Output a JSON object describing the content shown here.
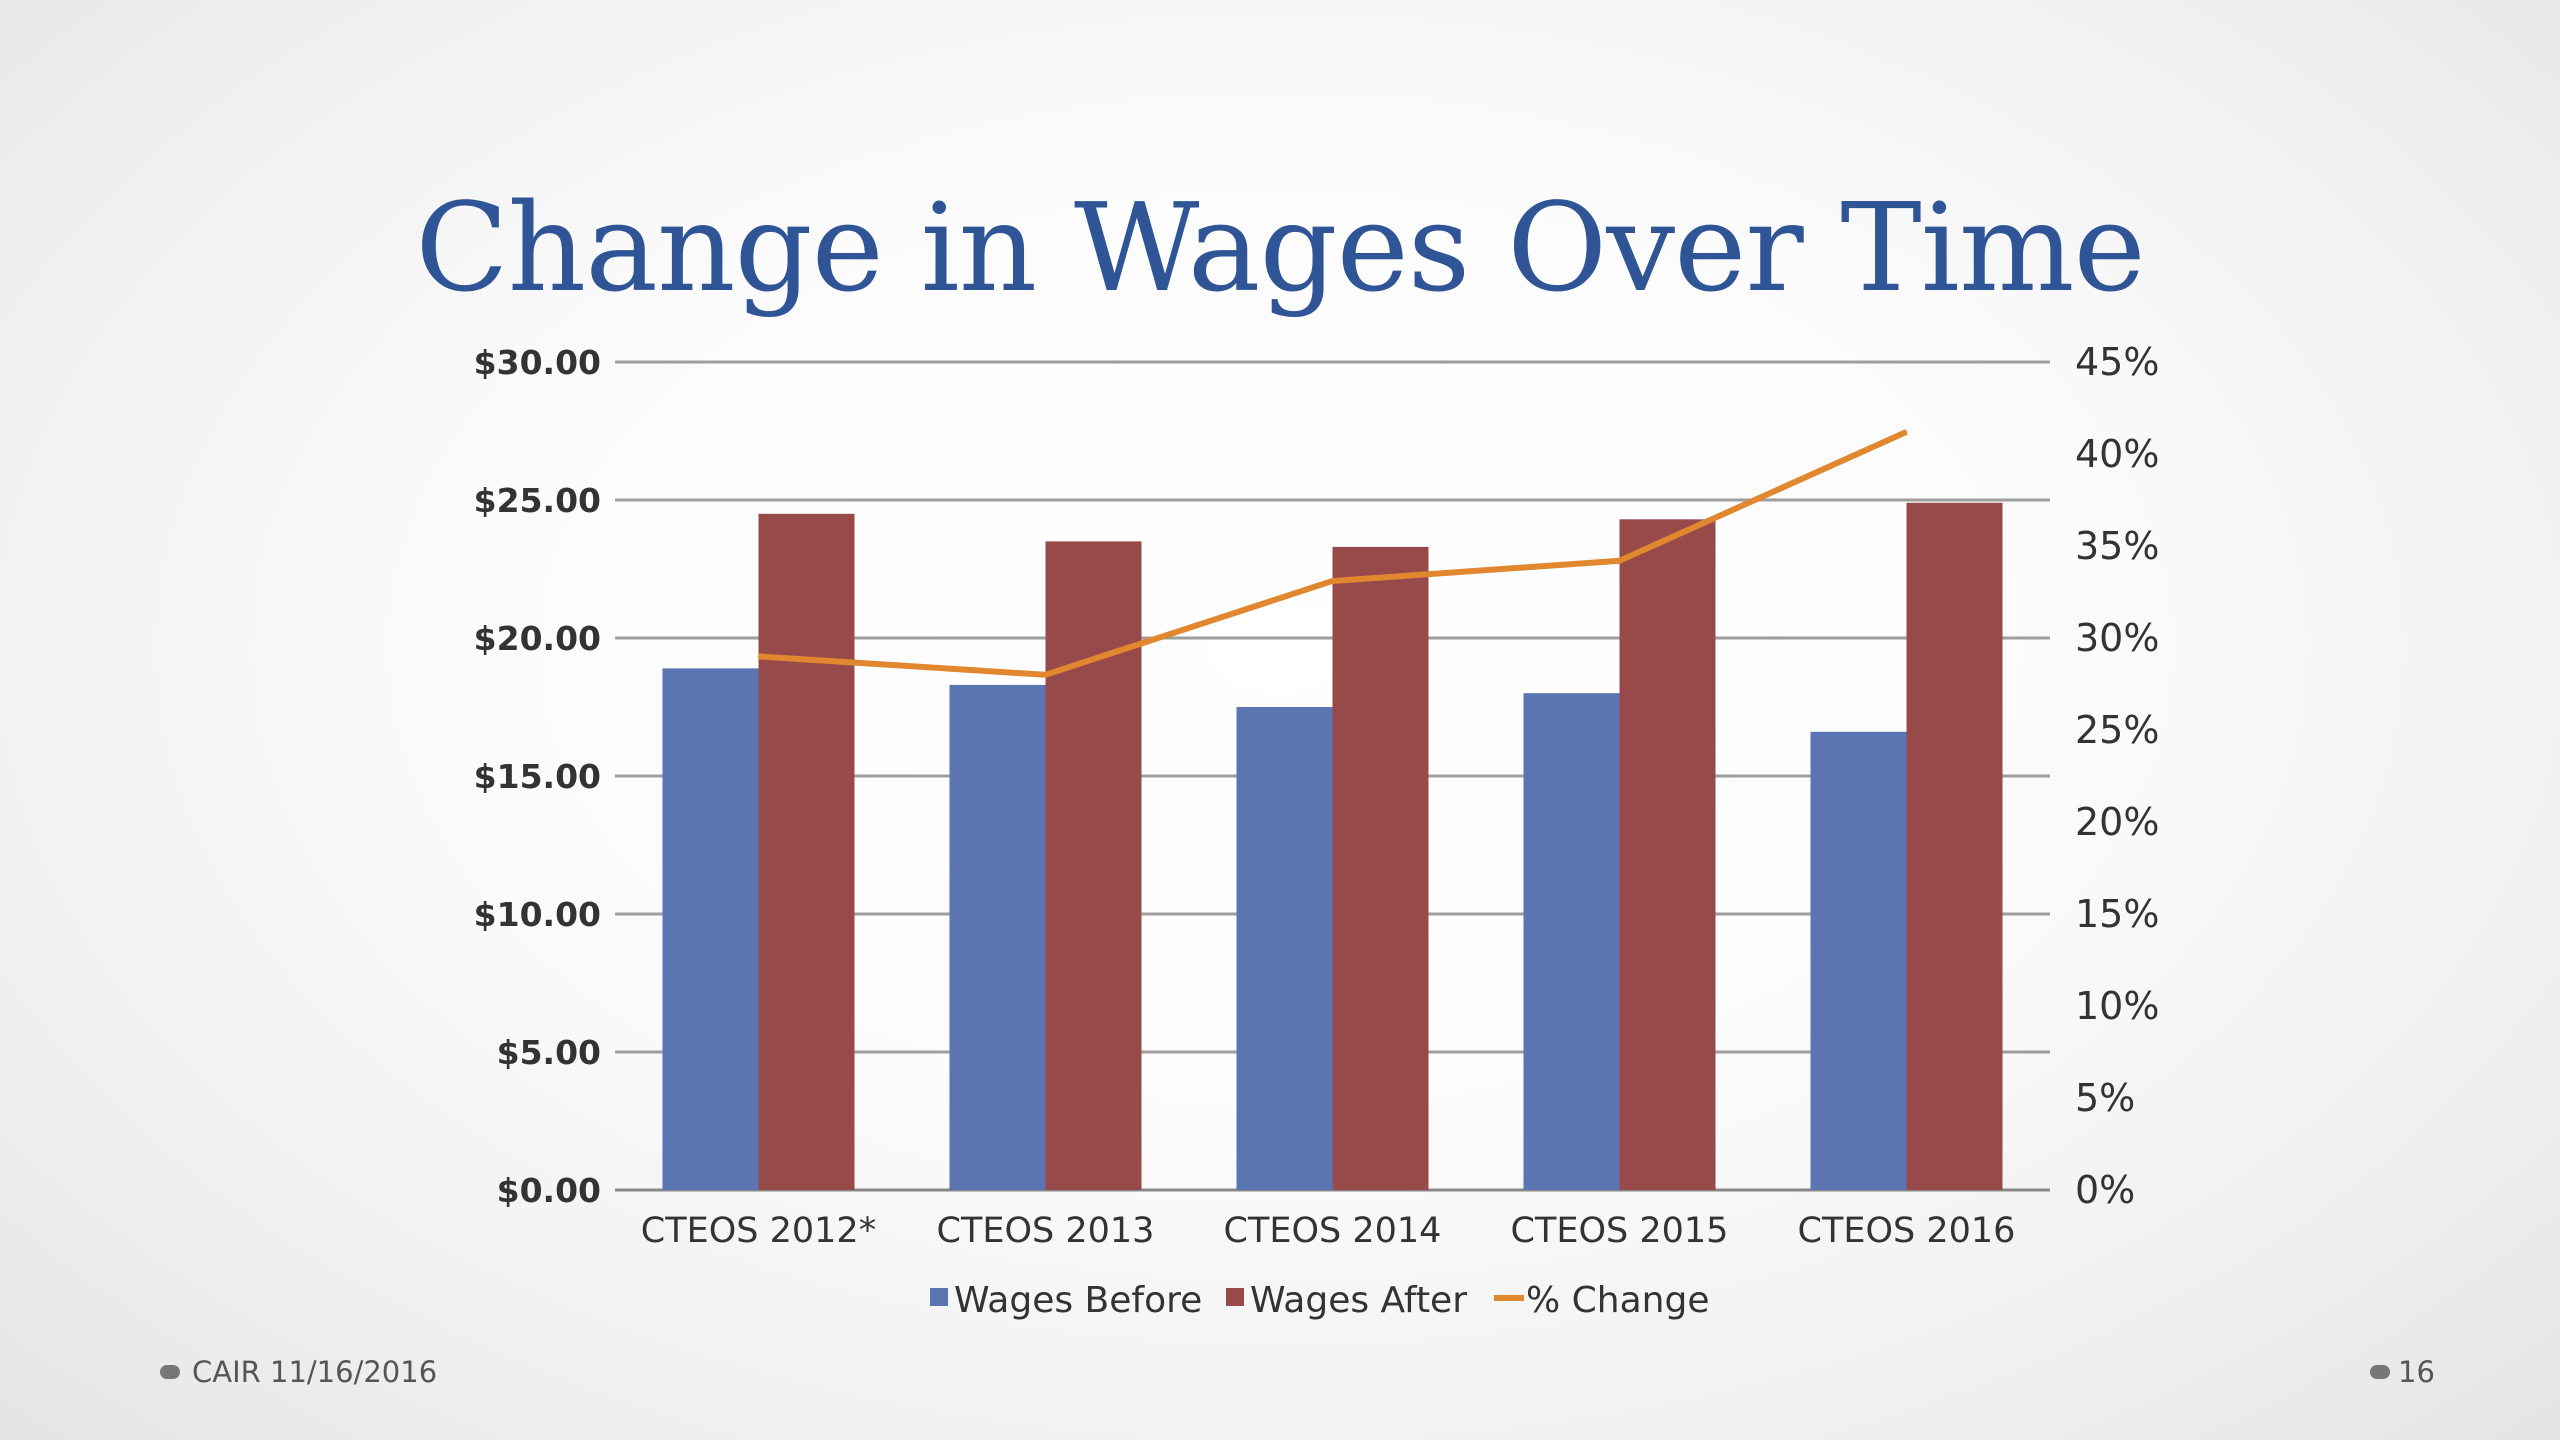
{
  "slide": {
    "title": "Change in Wages Over Time",
    "footer_left": "CAIR 11/16/2016",
    "page_number": "16",
    "colors": {
      "title": "#2f5597",
      "text": "#333333"
    }
  },
  "chart_data": {
    "type": "bar",
    "title": "",
    "categories": [
      "CTEOS 2012*",
      "CTEOS 2013",
      "CTEOS 2014",
      "CTEOS 2015",
      "CTEOS 2016"
    ],
    "series": [
      {
        "name": "Wages Before",
        "type": "bar",
        "axis": "left",
        "color": "#5b74b2",
        "values": [
          18.9,
          18.3,
          17.5,
          18.0,
          16.6
        ]
      },
      {
        "name": "Wages After",
        "type": "bar",
        "axis": "left",
        "color": "#984a4a",
        "values": [
          24.5,
          23.5,
          23.3,
          24.3,
          24.9
        ]
      },
      {
        "name": "% Change",
        "type": "line",
        "axis": "right",
        "color": "#e0872f",
        "values": [
          29.0,
          28.0,
          33.1,
          34.2,
          41.2
        ]
      }
    ],
    "y_left": {
      "min": 0,
      "max": 30,
      "step": 5,
      "tick_labels": [
        "$0.00",
        "$5.00",
        "$10.00",
        "$15.00",
        "$20.00",
        "$25.00",
        "$30.00"
      ]
    },
    "y_right": {
      "min": 0,
      "max": 45,
      "step": 5,
      "tick_labels": [
        "0%",
        "5%",
        "10%",
        "15%",
        "20%",
        "25%",
        "30%",
        "35%",
        "40%",
        "45%"
      ]
    },
    "xlabel": "",
    "ylabel": "",
    "grid": true,
    "legend_position": "bottom"
  }
}
